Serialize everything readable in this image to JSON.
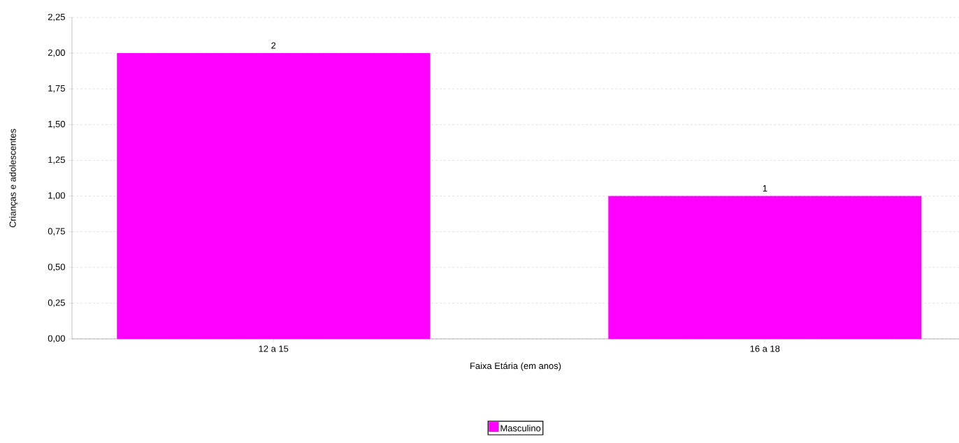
{
  "chart_data": {
    "type": "bar",
    "xlabel": "Faixa Etária (em anos)",
    "ylabel": "Crianças e adolescentes",
    "categories": [
      "12 a 15",
      "16 a 18"
    ],
    "series": [
      {
        "name": "Masculino",
        "color": "#ff00ff",
        "values": [
          2,
          1
        ]
      }
    ],
    "ylim": [
      0,
      2.25
    ],
    "yticks": [
      {
        "value": 0,
        "label": "0,00"
      },
      {
        "value": 0.25,
        "label": "0,25"
      },
      {
        "value": 0.5,
        "label": "0,50"
      },
      {
        "value": 0.75,
        "label": "0,75"
      },
      {
        "value": 1,
        "label": "1,00"
      },
      {
        "value": 1.25,
        "label": "1,25"
      },
      {
        "value": 1.5,
        "label": "1,50"
      },
      {
        "value": 1.75,
        "label": "1,75"
      },
      {
        "value": 2,
        "label": "2,00"
      },
      {
        "value": 2.25,
        "label": "2,25"
      }
    ],
    "grid": "y",
    "legend": "bottom",
    "data_labels": true
  }
}
